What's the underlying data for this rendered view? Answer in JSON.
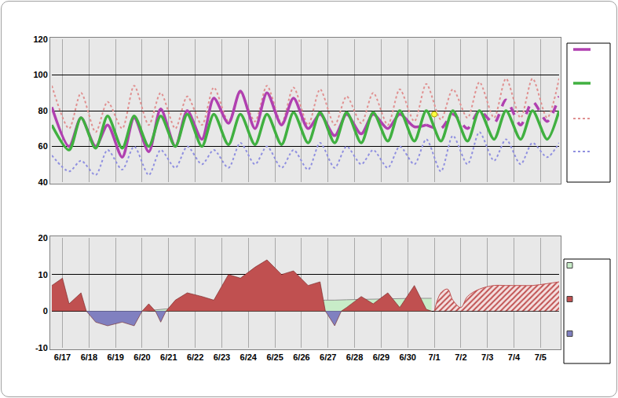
{
  "chart_data": [
    {
      "type": "line",
      "x": [
        -0.4,
        0.25,
        0.7,
        1.25,
        1.7,
        2.25,
        2.7,
        3.25,
        3.7,
        4.25,
        4.7,
        5.25,
        5.7,
        6.25,
        6.7,
        7.25,
        7.7,
        8.25,
        8.7,
        9.25,
        9.7,
        10.25,
        10.7,
        11.25,
        11.7,
        12.25,
        12.7,
        13.25,
        13.7,
        14.25,
        14.7,
        15.25,
        15.7,
        16.25,
        16.7,
        17.25,
        17.7,
        18.25,
        18.7
      ],
      "xlim": [
        -0.4,
        18.7
      ],
      "xticks": [
        {
          "value": 0,
          "label": "6/17"
        },
        {
          "value": 1,
          "label": "6/18"
        },
        {
          "value": 2,
          "label": "6/19"
        },
        {
          "value": 3,
          "label": "6/20"
        },
        {
          "value": 4,
          "label": "6/21"
        },
        {
          "value": 5,
          "label": "6/22"
        },
        {
          "value": 6,
          "label": "6/23"
        },
        {
          "value": 7,
          "label": "6/24"
        },
        {
          "value": 8,
          "label": "6/25"
        },
        {
          "value": 9,
          "label": "6/26"
        },
        {
          "value": 10,
          "label": "6/27"
        },
        {
          "value": 11,
          "label": "6/28"
        },
        {
          "value": 12,
          "label": "6/29"
        },
        {
          "value": 13,
          "label": "6/30"
        },
        {
          "value": 14,
          "label": "7/1"
        },
        {
          "value": 15,
          "label": "7/2"
        },
        {
          "value": 16,
          "label": "7/3"
        },
        {
          "value": 17,
          "label": "7/4"
        },
        {
          "value": 18,
          "label": "7/5"
        }
      ],
      "ylim": [
        40,
        120
      ],
      "yticks": [
        40,
        60,
        80,
        100,
        120
      ],
      "grid": true,
      "tick_labels": "y",
      "series": [
        {
          "color": "#e09090",
          "line_style": "dotted",
          "values": [
            94,
            70,
            90,
            68,
            85,
            70,
            94,
            72,
            90,
            70,
            88,
            72,
            93,
            74,
            90,
            74,
            94,
            73,
            93,
            72,
            92,
            72,
            88,
            73,
            90,
            72,
            92,
            74,
            95,
            75,
            92,
            76,
            96,
            76,
            98,
            76,
            98,
            76,
            98
          ]
        },
        {
          "color": "#9090e0",
          "line_style": "dotted",
          "values": [
            55,
            46,
            52,
            44,
            58,
            47,
            60,
            44,
            58,
            48,
            60,
            50,
            58,
            48,
            62,
            50,
            60,
            48,
            58,
            47,
            62,
            48,
            60,
            50,
            58,
            48,
            60,
            50,
            64,
            46,
            66,
            50,
            68,
            52,
            64,
            50,
            62,
            54,
            62
          ]
        },
        {
          "color": "#b040b0",
          "line_style": "solid",
          "values": [
            82,
            60,
            76,
            60,
            72,
            54,
            76,
            57,
            81,
            60,
            80,
            64,
            87,
            73,
            91,
            70,
            90,
            72,
            87,
            70,
            78,
            66,
            78,
            67,
            78,
            70,
            78,
            71,
            72,
            null,
            null,
            null,
            null,
            null,
            null,
            null,
            null,
            null,
            null
          ]
        },
        {
          "color": "#b040b0",
          "line_style": "dashed",
          "values": [
            null,
            null,
            null,
            null,
            null,
            null,
            null,
            null,
            null,
            null,
            null,
            null,
            null,
            null,
            null,
            null,
            null,
            null,
            null,
            null,
            null,
            null,
            null,
            null,
            null,
            null,
            null,
            null,
            72,
            70,
            78,
            70,
            80,
            73,
            86,
            72,
            85,
            74,
            88
          ]
        },
        {
          "color": "#40b040",
          "line_style": "solid",
          "values": [
            72,
            58,
            76,
            59,
            77,
            59,
            77,
            60,
            77,
            60,
            78,
            60,
            78,
            61,
            78,
            61,
            78,
            61,
            79,
            62,
            79,
            62,
            79,
            62,
            79,
            63,
            80,
            63,
            80,
            63,
            80,
            63,
            80,
            64,
            80,
            64,
            80,
            64,
            80
          ]
        },
        {
          "color": "#ffff40",
          "marker": "circle",
          "x": [
            14
          ],
          "values": [
            78
          ]
        }
      ]
    },
    {
      "type": "area",
      "x": [
        -0.4,
        0,
        0.25,
        0.7,
        0.9,
        1.25,
        1.7,
        2.25,
        2.7,
        3.0,
        3.25,
        3.5,
        3.7,
        3.9,
        4.25,
        4.7,
        5.25,
        5.7,
        6.25,
        6.7,
        7.25,
        7.7,
        8.25,
        8.7,
        9.25,
        9.7,
        9.9,
        10.25,
        10.5,
        10.7,
        11.25,
        11.7,
        12.25,
        12.7,
        13.25,
        13.7,
        13.9,
        14.0,
        14.25,
        14.5,
        14.7,
        15.0,
        15.25,
        15.7,
        16.25,
        16.7,
        17.25,
        17.7,
        18.25,
        18.7
      ],
      "xlim": [
        -0.4,
        18.7
      ],
      "xticks": [
        {
          "value": 0,
          "label": "6/17"
        },
        {
          "value": 1,
          "label": "6/18"
        },
        {
          "value": 2,
          "label": "6/19"
        },
        {
          "value": 3,
          "label": "6/20"
        },
        {
          "value": 4,
          "label": "6/21"
        },
        {
          "value": 5,
          "label": "6/22"
        },
        {
          "value": 6,
          "label": "6/23"
        },
        {
          "value": 7,
          "label": "6/24"
        },
        {
          "value": 8,
          "label": "6/25"
        },
        {
          "value": 9,
          "label": "6/26"
        },
        {
          "value": 10,
          "label": "6/27"
        },
        {
          "value": 11,
          "label": "6/28"
        },
        {
          "value": 12,
          "label": "6/29"
        },
        {
          "value": 13,
          "label": "6/30"
        },
        {
          "value": 14,
          "label": "7/1"
        },
        {
          "value": 15,
          "label": "7/2"
        },
        {
          "value": 16,
          "label": "7/3"
        },
        {
          "value": 17,
          "label": "7/4"
        },
        {
          "value": 18,
          "label": "7/5"
        }
      ],
      "ylim": [
        -10,
        20
      ],
      "yticks": [
        -10,
        0,
        10,
        20
      ],
      "grid": true,
      "series": [
        {
          "color": "#c8ecc8",
          "values": [
            null,
            null,
            null,
            null,
            null,
            null,
            null,
            null,
            null,
            0,
            0.2,
            0.4,
            0.5,
            0.6,
            0.8,
            1.0,
            1.2,
            1.4,
            1.7,
            1.9,
            2.1,
            2.3,
            2.5,
            2.6,
            2.8,
            2.9,
            3.0,
            3.0,
            3.1,
            3.1,
            3.2,
            3.3,
            3.4,
            3.4,
            3.5,
            3.5,
            3.5,
            null,
            null,
            null,
            null,
            null,
            null,
            null,
            null,
            null,
            null,
            null,
            null,
            null
          ]
        },
        {
          "color": "#c05050",
          "values": [
            7,
            9,
            2,
            5,
            0,
            null,
            null,
            null,
            null,
            0,
            2,
            0,
            null,
            0,
            3,
            5,
            4,
            3,
            10,
            9,
            12,
            14,
            10,
            11,
            7,
            8,
            0,
            null,
            0,
            1,
            4,
            2,
            5,
            1,
            7,
            0.5,
            0,
            null,
            null,
            null,
            null,
            null,
            null,
            null,
            null,
            null,
            null,
            null,
            null,
            null
          ]
        },
        {
          "color": "#8080c0",
          "values": [
            null,
            null,
            null,
            null,
            0,
            -3,
            -4,
            -3,
            -4,
            0,
            null,
            0,
            -3,
            0,
            null,
            null,
            null,
            null,
            null,
            null,
            null,
            null,
            null,
            null,
            null,
            null,
            0,
            -4,
            0,
            null,
            null,
            null,
            null,
            null,
            null,
            null,
            null,
            null,
            null,
            null,
            null,
            null,
            null,
            null,
            null,
            null,
            null,
            null,
            null,
            null
          ]
        },
        {
          "color": "#c05050",
          "line_style": "hatched",
          "values": [
            null,
            null,
            null,
            null,
            null,
            null,
            null,
            null,
            null,
            null,
            null,
            null,
            null,
            null,
            null,
            null,
            null,
            null,
            null,
            null,
            null,
            null,
            null,
            null,
            null,
            null,
            null,
            null,
            null,
            null,
            null,
            null,
            null,
            null,
            null,
            null,
            null,
            0,
            5,
            6,
            3,
            1,
            4,
            6,
            7,
            7,
            7,
            7,
            7.5,
            8
          ]
        }
      ]
    }
  ]
}
